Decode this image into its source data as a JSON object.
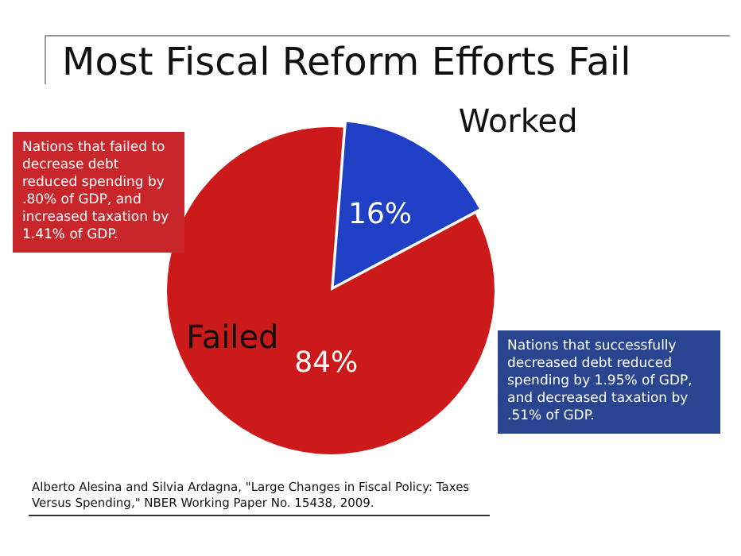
{
  "chart_data": {
    "type": "pie",
    "title": "Most Fiscal Reform Efforts Fail",
    "categories": [
      "Failed",
      "Worked"
    ],
    "values": [
      84,
      16
    ],
    "colors": [
      "#cc1a1a",
      "#1f3fc4"
    ],
    "value_labels": [
      "84%",
      "16%"
    ],
    "legend": false,
    "annotations": [
      "Nations that failed to decrease debt reduced spending by .80% of GDP, and increased taxation by 1.41% of GDP.",
      "Nations that successfully decreased debt reduced spending by 1.95% of GDP, and decreased taxation by .51% of GDP.",
      "Alberto Alesina and Silvia Ardagna, \"Large Changes in Fiscal Policy: Taxes Versus Spending,\" NBER Working Paper No. 15438, 2009."
    ]
  }
}
